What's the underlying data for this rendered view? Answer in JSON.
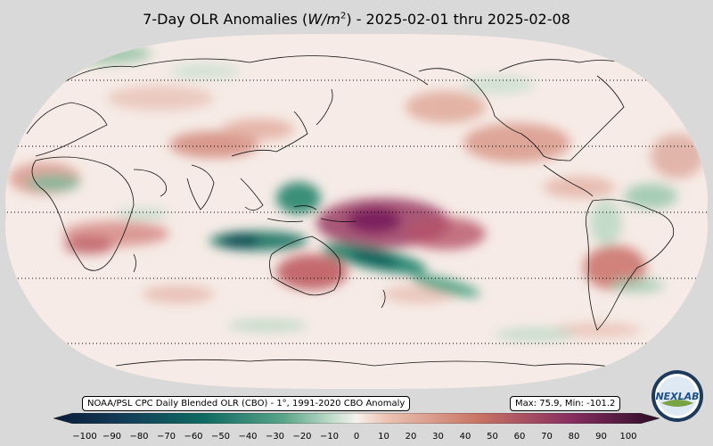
{
  "title": {
    "prefix": "7-Day OLR Anomalies (",
    "unit_base": "W/m",
    "unit_exp": "2",
    "suffix": ") - 2025-02-01 thru 2025-02-08"
  },
  "source_label": "NOAA/PSL CPC Daily Blended OLR (CBO) - 1°, 1991-2020 CBO Anomaly",
  "stats_label": "Max: 75.9,  Min: -101.2",
  "colorbar": {
    "ticks": [
      "−100",
      "−90",
      "−80",
      "−70",
      "−60",
      "−50",
      "−40",
      "−30",
      "−20",
      "−10",
      "0",
      "10",
      "20",
      "30",
      "40",
      "50",
      "60",
      "70",
      "80",
      "90",
      "100"
    ],
    "colors": {
      "neg_extreme": "#0b1a3a",
      "neg_strong": "#0f6b62",
      "neg_mid": "#5aa58a",
      "neg_weak": "#cfe3d3",
      "zero": "#f7f1ec",
      "pos_weak": "#ebc2b3",
      "pos_mid": "#c97564",
      "pos_strong": "#8a2f62",
      "pos_extreme": "#2b0b26"
    }
  },
  "map": {
    "projection": "Robinson, centered on 150°E",
    "ocean_color": "#f6ebe6",
    "background_color": "#d9d9d9"
  },
  "logo_text": "NEXLAB"
}
